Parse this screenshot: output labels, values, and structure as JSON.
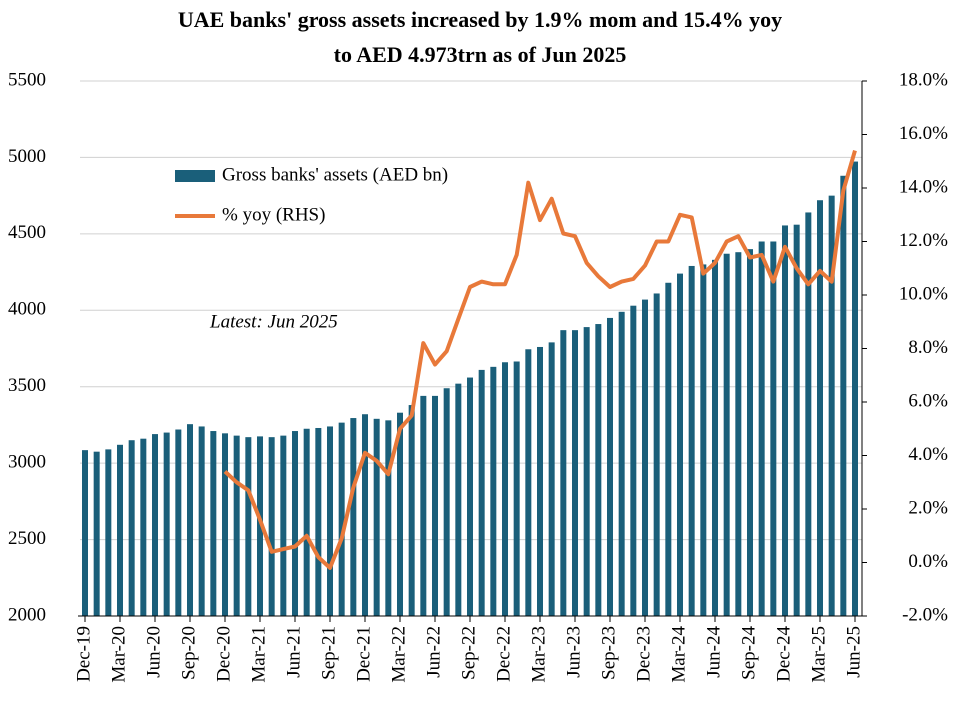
{
  "chart_data": {
    "type": "bar-line",
    "title": [
      "UAE banks' gross assets increased by 1.9% mom and 15.4% yoy",
      "to AED 4.973trn as of Jun 2025"
    ],
    "annotation": "Latest: Jun 2025",
    "categories": [
      "Dec-19",
      null,
      null,
      "Mar-20",
      null,
      null,
      "Jun-20",
      null,
      null,
      "Sep-20",
      null,
      null,
      "Dec-20",
      null,
      null,
      "Mar-21",
      null,
      null,
      "Jun-21",
      null,
      null,
      "Sep-21",
      null,
      null,
      "Dec-21",
      null,
      null,
      "Mar-22",
      null,
      null,
      "Jun-22",
      null,
      null,
      "Sep-22",
      null,
      null,
      "Dec-22",
      null,
      null,
      "Mar-23",
      null,
      null,
      "Jun-23",
      null,
      null,
      "Sep-23",
      null,
      null,
      "Dec-23",
      null,
      null,
      "Mar-24",
      null,
      null,
      "Jun-24",
      null,
      null,
      "Sep-24",
      null,
      null,
      "Dec-24",
      null,
      null,
      "Mar-25",
      null,
      null,
      "Jun-25"
    ],
    "series": [
      {
        "name": "Gross banks' assets (AED bn)",
        "color": "#1a5f7a",
        "type": "bar",
        "values": [
          3085,
          3075,
          3090,
          3120,
          3150,
          3160,
          3190,
          3200,
          3220,
          3255,
          3240,
          3210,
          3195,
          3180,
          3170,
          3175,
          3170,
          3180,
          3210,
          3225,
          3230,
          3240,
          3265,
          3295,
          3320,
          3290,
          3280,
          3330,
          3380,
          3440,
          3440,
          3490,
          3520,
          3560,
          3610,
          3630,
          3660,
          3665,
          3745,
          3760,
          3790,
          3870,
          3870,
          3890,
          3910,
          3950,
          3990,
          4030,
          4070,
          4110,
          4180,
          4240,
          4290,
          4300,
          4330,
          4370,
          4380,
          4400,
          4450,
          4450,
          4555,
          4560,
          4640,
          4720,
          4750,
          4880,
          4973
        ]
      },
      {
        "name": "% yoy (RHS)",
        "color": "#e8793a",
        "type": "line",
        "axis": "y2",
        "values": [
          null,
          null,
          null,
          null,
          null,
          null,
          null,
          null,
          null,
          null,
          null,
          null,
          3.4,
          3.0,
          2.7,
          1.6,
          0.4,
          0.5,
          0.6,
          1.0,
          0.2,
          -0.2,
          0.9,
          2.8,
          4.1,
          3.8,
          3.3,
          5.0,
          5.5,
          8.2,
          7.4,
          7.9,
          9.1,
          10.3,
          10.5,
          10.4,
          10.4,
          11.5,
          14.2,
          12.8,
          13.6,
          12.3,
          12.2,
          11.2,
          10.7,
          10.3,
          10.5,
          10.6,
          11.1,
          12.0,
          12.0,
          13.0,
          12.9,
          10.8,
          11.2,
          12.0,
          12.2,
          11.4,
          11.5,
          10.5,
          11.8,
          11.0,
          10.4,
          10.9,
          10.5,
          13.9,
          15.4
        ]
      }
    ],
    "ylim": [
      2000,
      5500
    ],
    "yticks": [
      2000,
      2500,
      3000,
      3500,
      4000,
      4500,
      5000,
      5500
    ],
    "y2lim": [
      -2,
      18
    ],
    "y2ticks": [
      {
        "value": -2,
        "label": "-2.0%"
      },
      {
        "value": 0,
        "label": "0.0%"
      },
      {
        "value": 2,
        "label": "2.0%"
      },
      {
        "value": 4,
        "label": "4.0%"
      },
      {
        "value": 6,
        "label": "6.0%"
      },
      {
        "value": 8,
        "label": "8.0%"
      },
      {
        "value": 10,
        "label": "10.0%"
      },
      {
        "value": 12,
        "label": "12.0%"
      },
      {
        "value": 14,
        "label": "14.0%"
      },
      {
        "value": 16,
        "label": "16.0%"
      },
      {
        "value": 18,
        "label": "18.0%"
      }
    ],
    "grid": true
  }
}
